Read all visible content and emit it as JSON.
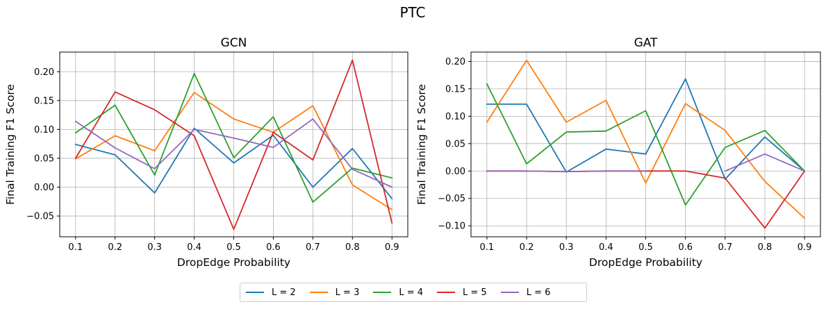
{
  "suptitle": "PTC",
  "colors": {
    "L = 2": "#1f77b4",
    "L = 3": "#ff7f0e",
    "L = 4": "#2ca02c",
    "L = 5": "#d62728",
    "L = 6": "#9467bd"
  },
  "legend": {
    "placement": "bottom-center",
    "items": [
      "L = 2",
      "L = 3",
      "L = 4",
      "L = 5",
      "L = 6"
    ]
  },
  "chart_data": [
    {
      "type": "line",
      "title": "GCN",
      "xlabel": "DropEdge Probability",
      "ylabel": "Final Training F1 Score",
      "x": [
        0.1,
        0.2,
        0.3,
        0.4,
        0.5,
        0.6,
        0.7,
        0.8,
        0.9
      ],
      "xticks": [
        "0.1",
        "0.2",
        "0.3",
        "0.4",
        "0.5",
        "0.6",
        "0.7",
        "0.8",
        "0.9"
      ],
      "yticks": [
        "−0.05",
        "0.00",
        "0.05",
        "0.10",
        "0.15",
        "0.20"
      ],
      "ytick_values": [
        -0.05,
        0.0,
        0.05,
        0.1,
        0.15,
        0.2
      ],
      "xlim": [
        0.06,
        0.94
      ],
      "ylim": [
        -0.086,
        0.234
      ],
      "grid": true,
      "series": [
        {
          "name": "L = 2",
          "values": [
            0.074,
            0.056,
            -0.01,
            0.102,
            0.042,
            0.09,
            0.0,
            0.067,
            -0.02
          ]
        },
        {
          "name": "L = 3",
          "values": [
            0.049,
            0.089,
            0.063,
            0.164,
            0.118,
            0.095,
            0.141,
            0.004,
            -0.039
          ]
        },
        {
          "name": "L = 4",
          "values": [
            0.094,
            0.142,
            0.021,
            0.197,
            0.051,
            0.122,
            -0.026,
            0.033,
            0.016
          ]
        },
        {
          "name": "L = 5",
          "values": [
            0.05,
            0.165,
            0.134,
            0.089,
            -0.073,
            0.095,
            0.047,
            0.22,
            -0.062
          ]
        },
        {
          "name": "L = 6",
          "values": [
            0.114,
            0.068,
            0.032,
            0.1,
            0.085,
            0.069,
            0.118,
            0.031,
            0.0
          ]
        }
      ]
    },
    {
      "type": "line",
      "title": "GAT",
      "xlabel": "DropEdge Probability",
      "ylabel": "Final Training F1 Score",
      "x": [
        0.1,
        0.2,
        0.3,
        0.4,
        0.5,
        0.6,
        0.7,
        0.8,
        0.9
      ],
      "xticks": [
        "0.1",
        "0.2",
        "0.3",
        "0.4",
        "0.5",
        "0.6",
        "0.7",
        "0.8",
        "0.9"
      ],
      "yticks": [
        "−0.10",
        "−0.05",
        "0.00",
        "0.05",
        "0.10",
        "0.15",
        "0.20"
      ],
      "ytick_values": [
        -0.1,
        -0.05,
        0.0,
        0.05,
        0.1,
        0.15,
        0.2
      ],
      "xlim": [
        0.06,
        0.94
      ],
      "ylim": [
        -0.12,
        0.217
      ],
      "grid": true,
      "series": [
        {
          "name": "L = 2",
          "values": [
            0.122,
            0.122,
            -0.002,
            0.04,
            0.031,
            0.168,
            -0.015,
            0.062,
            0.0
          ]
        },
        {
          "name": "L = 3",
          "values": [
            0.089,
            0.202,
            0.089,
            0.129,
            -0.022,
            0.123,
            0.074,
            -0.019,
            -0.086
          ]
        },
        {
          "name": "L = 4",
          "values": [
            0.159,
            0.013,
            0.071,
            0.073,
            0.11,
            -0.062,
            0.043,
            0.074,
            0.0
          ]
        },
        {
          "name": "L = 5",
          "values": [
            0.0,
            0.0,
            -0.001,
            0.0,
            0.0,
            0.0,
            -0.013,
            -0.104,
            0.0
          ]
        },
        {
          "name": "L = 6",
          "values": [
            0.0,
            0.0,
            -0.001,
            0.0,
            0.0,
            null,
            0.0,
            0.031,
            0.0
          ]
        }
      ]
    }
  ]
}
